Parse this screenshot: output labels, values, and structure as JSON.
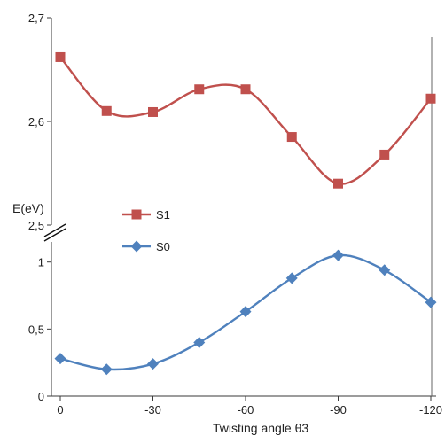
{
  "chart_data": {
    "type": "line",
    "xlabel": "Twisting angle θ3",
    "ylabel": "E(eV)",
    "x": [
      0,
      -15,
      -30,
      -45,
      -60,
      -75,
      -90,
      -105,
      -120
    ],
    "xticks": [
      0,
      -30,
      -60,
      -90,
      -120
    ],
    "xtick_labels": [
      "0",
      "-30",
      "-60",
      "-90",
      "-120"
    ],
    "xlim": [
      0,
      -120
    ],
    "axis_break": true,
    "upper_panel": {
      "ylim": [
        2.5,
        2.7
      ],
      "yticks": [
        2.5,
        2.6,
        2.7
      ],
      "ytick_labels": [
        "2,5",
        "2,6",
        "2,7"
      ]
    },
    "lower_panel": {
      "ylim": [
        0,
        1.15
      ],
      "yticks": [
        0,
        0.5,
        1
      ],
      "ytick_labels": [
        "0",
        "0,5",
        "1"
      ]
    },
    "grid": false,
    "legend_position": "center-left",
    "series": [
      {
        "name": "S1",
        "panel": "upper",
        "color": "#c0504d",
        "marker": "square",
        "values": [
          2.662,
          2.61,
          2.609,
          2.631,
          2.631,
          2.585,
          2.54,
          2.568,
          2.622
        ]
      },
      {
        "name": "S0",
        "panel": "lower",
        "color": "#4f81bd",
        "marker": "diamond",
        "values": [
          0.28,
          0.2,
          0.24,
          0.4,
          0.63,
          0.88,
          1.05,
          0.94,
          0.7
        ]
      }
    ]
  }
}
